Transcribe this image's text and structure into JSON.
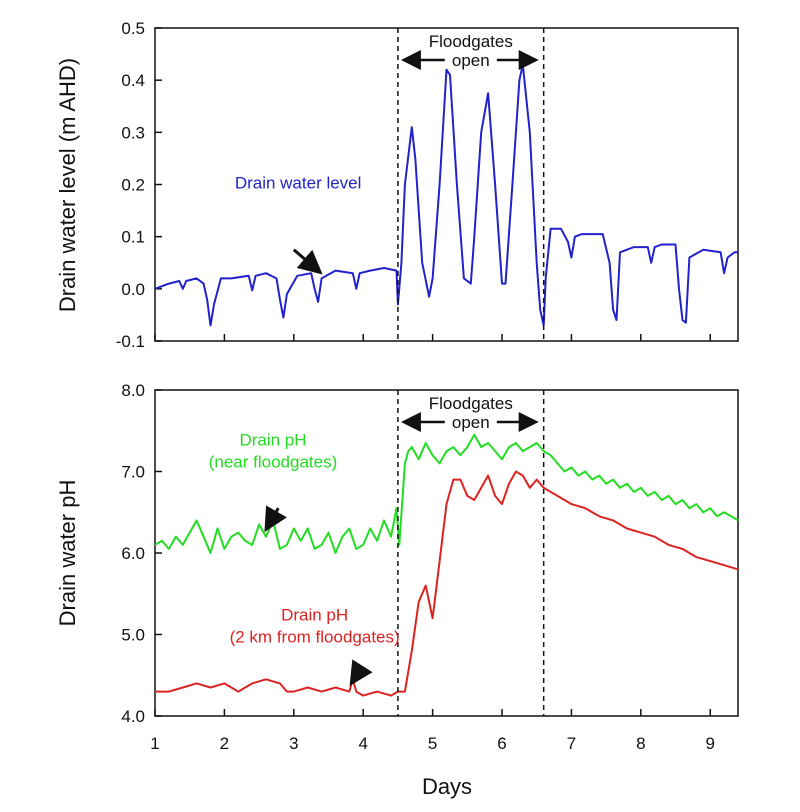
{
  "x_axis": {
    "label": "Days",
    "ticks": [
      1,
      2,
      3,
      4,
      5,
      6,
      7,
      8,
      9
    ],
    "lim": [
      1,
      9.4
    ]
  },
  "floodgates": {
    "open_x": 4.5,
    "close_x": 6.6,
    "label_line1": "Floodgates",
    "label_line2": "open"
  },
  "chart_data": [
    {
      "type": "line",
      "panel": "top",
      "ylabel": "Drain water level (m AHD)",
      "ylim": [
        -0.1,
        0.5
      ],
      "yticks": [
        -0.1,
        0.0,
        0.1,
        0.2,
        0.3,
        0.4,
        0.5
      ],
      "ytick_labels": [
        "-0.1",
        "0.0",
        "0.1",
        "0.2",
        "0.3",
        "0.4",
        "0.5"
      ],
      "series": [
        {
          "name": "Drain water level",
          "color": "#2222cc",
          "x": [
            1.0,
            1.2,
            1.35,
            1.4,
            1.45,
            1.6,
            1.7,
            1.75,
            1.8,
            1.85,
            1.95,
            2.1,
            2.35,
            2.4,
            2.45,
            2.6,
            2.75,
            2.8,
            2.85,
            2.9,
            3.05,
            3.25,
            3.3,
            3.35,
            3.4,
            3.6,
            3.85,
            3.9,
            3.95,
            4.1,
            4.3,
            4.48,
            4.5,
            4.55,
            4.6,
            4.7,
            4.75,
            4.85,
            4.95,
            5.0,
            5.1,
            5.2,
            5.25,
            5.35,
            5.45,
            5.55,
            5.6,
            5.7,
            5.8,
            5.9,
            6.0,
            6.05,
            6.15,
            6.25,
            6.3,
            6.4,
            6.5,
            6.55,
            6.6,
            6.63,
            6.7,
            6.85,
            6.95,
            7.0,
            7.05,
            7.15,
            7.45,
            7.55,
            7.6,
            7.65,
            7.7,
            7.9,
            8.1,
            8.15,
            8.2,
            8.3,
            8.5,
            8.55,
            8.6,
            8.65,
            8.7,
            8.9,
            9.15,
            9.2,
            9.25,
            9.35,
            9.4
          ],
          "y": [
            0.0,
            0.01,
            0.015,
            0.0,
            0.015,
            0.02,
            0.01,
            -0.02,
            -0.07,
            -0.03,
            0.02,
            0.02,
            0.025,
            -0.003,
            0.025,
            0.03,
            0.02,
            -0.02,
            -0.055,
            -0.01,
            0.025,
            0.03,
            0.0,
            -0.025,
            0.02,
            0.035,
            0.03,
            0.0,
            0.03,
            0.035,
            0.04,
            0.035,
            -0.03,
            0.05,
            0.2,
            0.31,
            0.25,
            0.05,
            -0.015,
            0.02,
            0.2,
            0.42,
            0.41,
            0.2,
            0.02,
            0.01,
            0.1,
            0.3,
            0.375,
            0.2,
            0.01,
            0.01,
            0.2,
            0.4,
            0.43,
            0.3,
            0.05,
            -0.04,
            -0.07,
            0.02,
            0.115,
            0.115,
            0.09,
            0.06,
            0.1,
            0.105,
            0.105,
            0.05,
            -0.04,
            -0.06,
            0.07,
            0.08,
            0.08,
            0.05,
            0.08,
            0.085,
            0.085,
            0.0,
            -0.06,
            -0.065,
            0.06,
            0.075,
            0.07,
            0.03,
            0.06,
            0.07,
            0.07
          ]
        }
      ],
      "annotations": [
        {
          "text": "Drain water level",
          "color": "#2222cc",
          "x": 2.15,
          "y": 0.1,
          "arrow_to_x": 3.35,
          "arrow_to_y": 0.035
        }
      ]
    },
    {
      "type": "line",
      "panel": "bottom",
      "ylabel": "Drain water pH",
      "ylim": [
        4.0,
        8.0
      ],
      "yticks": [
        4.0,
        5.0,
        6.0,
        7.0,
        8.0
      ],
      "ytick_labels": [
        "4.0",
        "5.0",
        "6.0",
        "7.0",
        "8.0"
      ],
      "series": [
        {
          "name": "Drain pH (near floodgates)",
          "color": "#22dd22",
          "x": [
            1.0,
            1.1,
            1.2,
            1.3,
            1.4,
            1.5,
            1.6,
            1.7,
            1.8,
            1.9,
            2.0,
            2.1,
            2.2,
            2.3,
            2.4,
            2.5,
            2.6,
            2.7,
            2.8,
            2.9,
            3.0,
            3.1,
            3.2,
            3.3,
            3.4,
            3.5,
            3.6,
            3.7,
            3.8,
            3.9,
            4.0,
            4.1,
            4.2,
            4.3,
            4.4,
            4.48,
            4.52,
            4.6,
            4.65,
            4.7,
            4.8,
            4.9,
            5.0,
            5.1,
            5.2,
            5.3,
            5.4,
            5.5,
            5.6,
            5.7,
            5.8,
            5.9,
            6.0,
            6.1,
            6.2,
            6.3,
            6.4,
            6.5,
            6.6,
            6.7,
            6.8,
            6.9,
            7.0,
            7.1,
            7.2,
            7.3,
            7.4,
            7.5,
            7.6,
            7.7,
            7.8,
            7.9,
            8.0,
            8.1,
            8.2,
            8.3,
            8.4,
            8.5,
            8.6,
            8.7,
            8.8,
            8.9,
            9.0,
            9.1,
            9.2,
            9.3,
            9.4
          ],
          "y": [
            6.1,
            6.15,
            6.05,
            6.2,
            6.1,
            6.25,
            6.4,
            6.2,
            6.0,
            6.3,
            6.05,
            6.2,
            6.25,
            6.15,
            6.1,
            6.35,
            6.2,
            6.4,
            6.05,
            6.1,
            6.3,
            6.15,
            6.3,
            6.05,
            6.1,
            6.25,
            6.0,
            6.2,
            6.3,
            6.05,
            6.1,
            6.3,
            6.15,
            6.4,
            6.2,
            6.55,
            6.1,
            7.1,
            7.25,
            7.3,
            7.15,
            7.35,
            7.2,
            7.1,
            7.25,
            7.3,
            7.2,
            7.3,
            7.45,
            7.3,
            7.35,
            7.25,
            7.15,
            7.3,
            7.35,
            7.25,
            7.3,
            7.35,
            7.25,
            7.2,
            7.1,
            7.0,
            7.05,
            6.95,
            7.0,
            6.9,
            6.95,
            6.85,
            6.9,
            6.8,
            6.85,
            6.75,
            6.8,
            6.7,
            6.75,
            6.65,
            6.7,
            6.6,
            6.65,
            6.55,
            6.6,
            6.5,
            6.55,
            6.45,
            6.5,
            6.45,
            6.4
          ]
        },
        {
          "name": "Drain pH (2 km from floodgates)",
          "color": "#dd2222",
          "x": [
            1.0,
            1.2,
            1.4,
            1.6,
            1.8,
            2.0,
            2.2,
            2.4,
            2.6,
            2.8,
            2.9,
            3.0,
            3.2,
            3.4,
            3.6,
            3.8,
            3.85,
            3.9,
            4.0,
            4.2,
            4.4,
            4.5,
            4.6,
            4.7,
            4.8,
            4.9,
            5.0,
            5.1,
            5.2,
            5.3,
            5.4,
            5.5,
            5.6,
            5.7,
            5.8,
            5.9,
            6.0,
            6.1,
            6.2,
            6.3,
            6.4,
            6.5,
            6.6,
            6.7,
            6.8,
            6.9,
            7.0,
            7.2,
            7.4,
            7.6,
            7.8,
            8.0,
            8.2,
            8.4,
            8.6,
            8.8,
            9.0,
            9.2,
            9.4
          ],
          "y": [
            4.3,
            4.3,
            4.35,
            4.4,
            4.35,
            4.4,
            4.3,
            4.4,
            4.45,
            4.4,
            4.3,
            4.3,
            4.35,
            4.3,
            4.35,
            4.3,
            4.45,
            4.3,
            4.25,
            4.3,
            4.25,
            4.3,
            4.3,
            4.8,
            5.4,
            5.6,
            5.2,
            5.9,
            6.6,
            6.9,
            6.9,
            6.7,
            6.65,
            6.8,
            6.95,
            6.7,
            6.6,
            6.85,
            7.0,
            6.95,
            6.8,
            6.9,
            6.8,
            6.75,
            6.7,
            6.65,
            6.6,
            6.55,
            6.45,
            6.4,
            6.3,
            6.25,
            6.2,
            6.1,
            6.05,
            5.95,
            5.9,
            5.85,
            5.8
          ]
        }
      ],
      "annotations": [
        {
          "text_line1": "Drain pH",
          "text_line2": "(near floodgates)",
          "color": "#22dd22",
          "x": 2.7,
          "y": 7.15,
          "arrow_from_x": 2.2,
          "arrow_from_y": 6.55,
          "arrow_to_x": 2.62,
          "arrow_to_y": 6.32
        },
        {
          "text_line1": "Drain pH",
          "text_line2": "(2 km from floodgates)",
          "color": "#dd2222",
          "x": 3.3,
          "y": 5.0,
          "arrow_from_x": 3.4,
          "arrow_from_y": 4.6,
          "arrow_to_x": 3.85,
          "arrow_to_y": 4.43
        }
      ]
    }
  ]
}
